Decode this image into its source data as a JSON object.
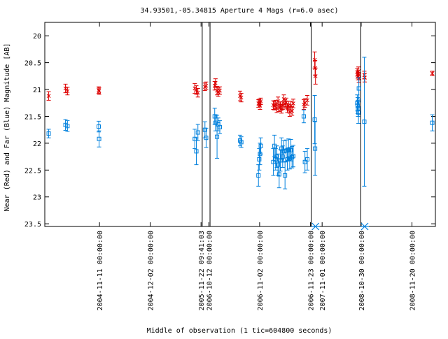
{
  "chart_data": {
    "type": "scatter",
    "title": "34.93501,-05.34815   Aperture 4 Mags (r=6.0 asec)",
    "xlabel": "Middle of observation (1 tic=604800 seconds)",
    "ylabel": "Near (Red) and Far (Blue) Magnitude [AB]",
    "ylim": [
      23.55,
      19.75
    ],
    "y_inverted": true,
    "y_ticks": [
      {
        "value": 20,
        "label": "20"
      },
      {
        "value": 20.5,
        "label": "20.5"
      },
      {
        "value": 21,
        "label": "21"
      },
      {
        "value": 21.5,
        "label": "21.5"
      },
      {
        "value": 22,
        "label": "22"
      },
      {
        "value": 22.5,
        "label": "22.5"
      },
      {
        "value": 23,
        "label": "23"
      },
      {
        "value": 23.5,
        "label": "23.5"
      }
    ],
    "x_axis": "observation sequence (tic = 604800 seconds, with gaps)",
    "x_range": [
      0,
      100
    ],
    "x_ticks": [
      {
        "pos": 14,
        "label": "2004-11-11 00:00:00"
      },
      {
        "pos": 27,
        "label": "2004-12-02 00:00:00"
      },
      {
        "pos": 40,
        "label": "2005-11-22 09:41:03"
      },
      {
        "pos": 42,
        "label": "2006-10-12 00:00:00"
      },
      {
        "pos": 55,
        "label": "2006-11-02 00:00:00"
      },
      {
        "pos": 68,
        "label": "2006-11-23 00:00:00"
      },
      {
        "pos": 71,
        "label": "2007-11-01 00:00:00"
      },
      {
        "pos": 81,
        "label": "2008-10-30 00:00:00"
      },
      {
        "pos": 94,
        "label": "2008-11-20 00:00:00"
      }
    ],
    "gap_markers": [
      40.3,
      42.3,
      68.2,
      80.9
    ],
    "grid": false,
    "legend": "none",
    "series": [
      {
        "color": "#dd0000",
        "marker": "x",
        "points": [
          {
            "x": 1.0,
            "y": 21.12,
            "e": 0.08
          },
          {
            "x": 5.3,
            "y": 20.98,
            "e": 0.08
          },
          {
            "x": 5.8,
            "y": 21.03,
            "e": 0.07
          },
          {
            "x": 13.8,
            "y": 21.01,
            "e": 0.06
          },
          {
            "x": 13.9,
            "y": 21.03,
            "e": 0.06
          },
          {
            "x": 38.4,
            "y": 20.98,
            "e": 0.09
          },
          {
            "x": 38.8,
            "y": 21.01,
            "e": 0.08
          },
          {
            "x": 39.2,
            "y": 21.06,
            "e": 0.08
          },
          {
            "x": 41.0,
            "y": 20.95,
            "e": 0.07
          },
          {
            "x": 41.3,
            "y": 20.93,
            "e": 0.07
          },
          {
            "x": 43.5,
            "y": 20.93,
            "e": 0.08
          },
          {
            "x": 43.7,
            "y": 20.88,
            "e": 0.08
          },
          {
            "x": 44.1,
            "y": 21.02,
            "e": 0.08
          },
          {
            "x": 44.4,
            "y": 21.05,
            "e": 0.08
          },
          {
            "x": 44.8,
            "y": 21.02,
            "e": 0.07
          },
          {
            "x": 50.0,
            "y": 21.12,
            "e": 0.09
          },
          {
            "x": 50.3,
            "y": 21.15,
            "e": 0.08
          },
          {
            "x": 54.7,
            "y": 21.26,
            "e": 0.07
          },
          {
            "x": 54.9,
            "y": 21.24,
            "e": 0.06
          },
          {
            "x": 55.1,
            "y": 21.3,
            "e": 0.07
          },
          {
            "x": 55.3,
            "y": 21.22,
            "e": 0.06
          },
          {
            "x": 58.5,
            "y": 21.29,
            "e": 0.08
          },
          {
            "x": 58.8,
            "y": 21.3,
            "e": 0.08
          },
          {
            "x": 59.1,
            "y": 21.28,
            "e": 0.08
          },
          {
            "x": 59.4,
            "y": 21.35,
            "e": 0.08
          },
          {
            "x": 59.7,
            "y": 21.22,
            "e": 0.08
          },
          {
            "x": 60.0,
            "y": 21.34,
            "e": 0.07
          },
          {
            "x": 60.3,
            "y": 21.31,
            "e": 0.08
          },
          {
            "x": 60.6,
            "y": 21.36,
            "e": 0.08
          },
          {
            "x": 60.9,
            "y": 21.3,
            "e": 0.07
          },
          {
            "x": 61.2,
            "y": 21.18,
            "e": 0.08
          },
          {
            "x": 61.5,
            "y": 21.27,
            "e": 0.08
          },
          {
            "x": 61.8,
            "y": 21.24,
            "e": 0.08
          },
          {
            "x": 62.1,
            "y": 21.35,
            "e": 0.08
          },
          {
            "x": 62.4,
            "y": 21.3,
            "e": 0.08
          },
          {
            "x": 62.7,
            "y": 21.42,
            "e": 0.08
          },
          {
            "x": 63.0,
            "y": 21.3,
            "e": 0.08
          },
          {
            "x": 63.3,
            "y": 21.4,
            "e": 0.08
          },
          {
            "x": 63.6,
            "y": 21.26,
            "e": 0.08
          },
          {
            "x": 66.3,
            "y": 21.28,
            "e": 0.09
          },
          {
            "x": 66.6,
            "y": 21.25,
            "e": 0.08
          },
          {
            "x": 67.2,
            "y": 21.2,
            "e": 0.09
          },
          {
            "x": 69.1,
            "y": 20.45,
            "e": 0.15
          },
          {
            "x": 69.2,
            "y": 20.6,
            "e": 0.14
          },
          {
            "x": 69.3,
            "y": 20.75,
            "e": 0.15
          },
          {
            "x": 80.0,
            "y": 20.68,
            "e": 0.07
          },
          {
            "x": 80.1,
            "y": 20.72,
            "e": 0.07
          },
          {
            "x": 80.2,
            "y": 20.75,
            "e": 0.07
          },
          {
            "x": 80.3,
            "y": 20.66,
            "e": 0.08
          },
          {
            "x": 80.4,
            "y": 20.79,
            "e": 0.08
          },
          {
            "x": 81.8,
            "y": 20.73,
            "e": 0.07
          },
          {
            "x": 81.9,
            "y": 20.78,
            "e": 0.08
          },
          {
            "x": 99.2,
            "y": 20.7,
            "e": 0.04
          }
        ]
      },
      {
        "color": "#0080dd",
        "marker": "square",
        "points": [
          {
            "x": 1.0,
            "y": 21.82,
            "e": 0.08
          },
          {
            "x": 5.3,
            "y": 21.66,
            "e": 0.1
          },
          {
            "x": 5.8,
            "y": 21.68,
            "e": 0.1
          },
          {
            "x": 13.8,
            "y": 21.69,
            "e": 0.1
          },
          {
            "x": 13.9,
            "y": 21.92,
            "e": 0.15
          },
          {
            "x": 38.4,
            "y": 21.92,
            "e": 0.18
          },
          {
            "x": 38.8,
            "y": 22.15,
            "e": 0.25
          },
          {
            "x": 39.2,
            "y": 21.8,
            "e": 0.15
          },
          {
            "x": 41.0,
            "y": 21.75,
            "e": 0.15
          },
          {
            "x": 41.3,
            "y": 21.9,
            "e": 0.18
          },
          {
            "x": 43.5,
            "y": 21.5,
            "e": 0.15
          },
          {
            "x": 43.7,
            "y": 21.62,
            "e": 0.15
          },
          {
            "x": 44.1,
            "y": 21.88,
            "e": 0.4
          },
          {
            "x": 44.4,
            "y": 21.65,
            "e": 0.12
          },
          {
            "x": 44.8,
            "y": 21.7,
            "e": 0.12
          },
          {
            "x": 50.0,
            "y": 21.95,
            "e": 0.1
          },
          {
            "x": 50.3,
            "y": 21.98,
            "e": 0.1
          },
          {
            "x": 54.7,
            "y": 22.6,
            "e": 0.2
          },
          {
            "x": 54.9,
            "y": 22.3,
            "e": 0.2
          },
          {
            "x": 55.1,
            "y": 22.2,
            "e": 0.2
          },
          {
            "x": 55.3,
            "y": 22.05,
            "e": 0.15
          },
          {
            "x": 58.5,
            "y": 22.35,
            "e": 0.25
          },
          {
            "x": 58.8,
            "y": 22.05,
            "e": 0.2
          },
          {
            "x": 59.1,
            "y": 22.3,
            "e": 0.2
          },
          {
            "x": 59.4,
            "y": 22.25,
            "e": 0.2
          },
          {
            "x": 59.7,
            "y": 22.4,
            "e": 0.2
          },
          {
            "x": 60.0,
            "y": 22.58,
            "e": 0.25
          },
          {
            "x": 60.3,
            "y": 22.32,
            "e": 0.2
          },
          {
            "x": 60.6,
            "y": 22.1,
            "e": 0.2
          },
          {
            "x": 60.9,
            "y": 22.25,
            "e": 0.2
          },
          {
            "x": 61.2,
            "y": 22.15,
            "e": 0.2
          },
          {
            "x": 61.5,
            "y": 22.6,
            "e": 0.25
          },
          {
            "x": 61.8,
            "y": 22.14,
            "e": 0.2
          },
          {
            "x": 62.1,
            "y": 22.3,
            "e": 0.2
          },
          {
            "x": 62.4,
            "y": 22.12,
            "e": 0.2
          },
          {
            "x": 62.7,
            "y": 22.28,
            "e": 0.2
          },
          {
            "x": 63.0,
            "y": 22.13,
            "e": 0.2
          },
          {
            "x": 63.3,
            "y": 22.26,
            "e": 0.2
          },
          {
            "x": 63.6,
            "y": 22.24,
            "e": 0.2
          },
          {
            "x": 66.3,
            "y": 21.5,
            "e": 0.12
          },
          {
            "x": 66.6,
            "y": 22.35,
            "e": 0.2
          },
          {
            "x": 67.2,
            "y": 22.3,
            "e": 0.2
          },
          {
            "x": 69.1,
            "y": 21.56,
            "e": 0.45
          },
          {
            "x": 69.2,
            "y": 22.1,
            "e": 0.5
          },
          {
            "x": 69.3,
            "y": 23.5,
            "e": 0
          },
          {
            "x": 80.0,
            "y": 21.25,
            "e": 0.15
          },
          {
            "x": 80.1,
            "y": 21.3,
            "e": 0.15
          },
          {
            "x": 80.2,
            "y": 21.35,
            "e": 0.15
          },
          {
            "x": 80.3,
            "y": 21.43,
            "e": 0.2
          },
          {
            "x": 80.4,
            "y": 20.98,
            "e": 0.2
          },
          {
            "x": 81.8,
            "y": 21.6,
            "e": 1.2
          },
          {
            "x": 81.9,
            "y": 23.5,
            "e": 0
          },
          {
            "x": 99.2,
            "y": 21.62,
            "e": 0.15
          }
        ]
      }
    ]
  }
}
